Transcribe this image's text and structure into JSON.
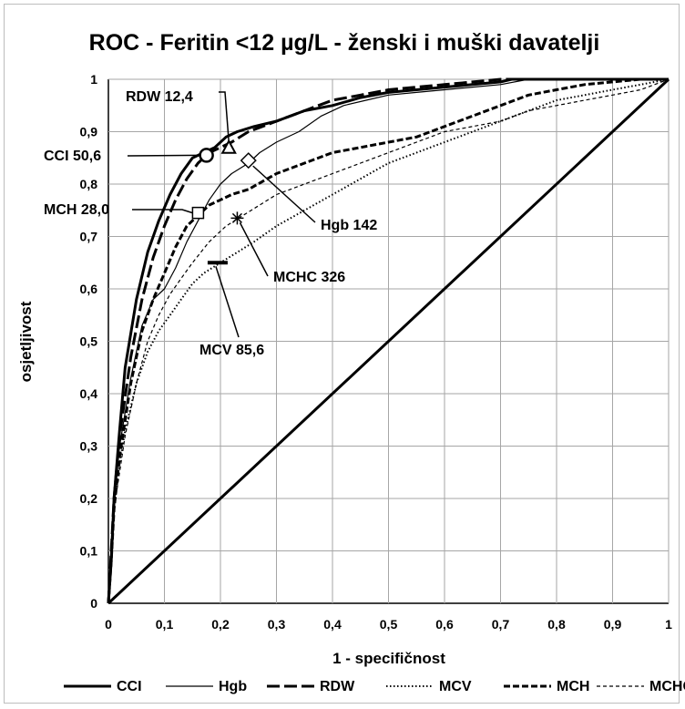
{
  "chart_data": {
    "type": "line",
    "title": "ROC - Feritin <12 µg/L - ženski i muški davatelji",
    "xlabel": "1 - specifičnost",
    "ylabel": "osjetljivost",
    "xlim": [
      0,
      1
    ],
    "ylim": [
      0,
      1
    ],
    "grid": true,
    "legend_placement": "bottom",
    "x_ticks": [
      "0",
      "0,1",
      "0,2",
      "0,3",
      "0,4",
      "0,5",
      "0,6",
      "0,7",
      "0,8",
      "0,9",
      "1"
    ],
    "y_ticks": [
      "0",
      "0,1",
      "0,2",
      "0,3",
      "0,4",
      "0,5",
      "0,6",
      "0,7",
      "0,8",
      "0,9",
      "1"
    ],
    "series": [
      {
        "name": "CCI",
        "style": "solid-thick",
        "color": "#000000",
        "x": [
          0,
          0.005,
          0.01,
          0.02,
          0.03,
          0.05,
          0.07,
          0.09,
          0.11,
          0.13,
          0.15,
          0.17,
          0.19,
          0.21,
          0.23,
          0.26,
          0.3,
          0.35,
          0.4,
          0.45,
          0.5,
          0.55,
          0.6,
          0.65,
          0.7,
          0.72,
          0.75,
          1
        ],
        "y": [
          0,
          0.08,
          0.2,
          0.33,
          0.45,
          0.58,
          0.67,
          0.73,
          0.78,
          0.82,
          0.85,
          0.86,
          0.87,
          0.89,
          0.9,
          0.91,
          0.92,
          0.94,
          0.95,
          0.965,
          0.975,
          0.98,
          0.985,
          0.99,
          0.995,
          1,
          1,
          1
        ]
      },
      {
        "name": "Hgb",
        "style": "solid-thin",
        "color": "#000000",
        "x": [
          0,
          0.01,
          0.02,
          0.04,
          0.06,
          0.08,
          0.1,
          0.12,
          0.14,
          0.16,
          0.18,
          0.2,
          0.22,
          0.25,
          0.27,
          0.3,
          0.34,
          0.38,
          0.42,
          0.46,
          0.5,
          0.55,
          0.6,
          0.65,
          0.7,
          0.75,
          1
        ],
        "y": [
          0,
          0.2,
          0.3,
          0.43,
          0.53,
          0.58,
          0.6,
          0.64,
          0.69,
          0.73,
          0.77,
          0.8,
          0.82,
          0.84,
          0.86,
          0.88,
          0.9,
          0.93,
          0.95,
          0.96,
          0.97,
          0.975,
          0.98,
          0.985,
          0.99,
          1,
          1
        ]
      },
      {
        "name": "RDW",
        "style": "long-dash-thick",
        "color": "#000000",
        "x": [
          0,
          0.005,
          0.01,
          0.02,
          0.04,
          0.06,
          0.08,
          0.1,
          0.12,
          0.14,
          0.16,
          0.18,
          0.2,
          0.22,
          0.25,
          0.3,
          0.35,
          0.4,
          0.45,
          0.5,
          0.55,
          0.6,
          0.65,
          0.7,
          0.75,
          1
        ],
        "y": [
          0,
          0.1,
          0.2,
          0.32,
          0.47,
          0.58,
          0.66,
          0.72,
          0.77,
          0.81,
          0.84,
          0.86,
          0.87,
          0.88,
          0.9,
          0.92,
          0.94,
          0.96,
          0.97,
          0.98,
          0.985,
          0.99,
          0.995,
          1,
          1,
          1
        ]
      },
      {
        "name": "MCV",
        "style": "dotted",
        "color": "#000000",
        "x": [
          0,
          0.01,
          0.03,
          0.05,
          0.07,
          0.09,
          0.11,
          0.13,
          0.15,
          0.17,
          0.2,
          0.23,
          0.26,
          0.3,
          0.35,
          0.4,
          0.45,
          0.5,
          0.55,
          0.6,
          0.65,
          0.7,
          0.75,
          0.8,
          0.85,
          0.9,
          0.95,
          1
        ],
        "y": [
          0,
          0.2,
          0.33,
          0.42,
          0.48,
          0.52,
          0.55,
          0.58,
          0.61,
          0.63,
          0.65,
          0.67,
          0.69,
          0.72,
          0.75,
          0.78,
          0.81,
          0.84,
          0.86,
          0.88,
          0.9,
          0.92,
          0.94,
          0.96,
          0.97,
          0.98,
          0.99,
          1
        ]
      },
      {
        "name": "MCH",
        "style": "dash-thick",
        "color": "#000000",
        "x": [
          0,
          0.005,
          0.01,
          0.02,
          0.04,
          0.06,
          0.08,
          0.1,
          0.12,
          0.14,
          0.16,
          0.18,
          0.2,
          0.22,
          0.25,
          0.3,
          0.35,
          0.4,
          0.45,
          0.5,
          0.55,
          0.6,
          0.65,
          0.7,
          0.75,
          0.8,
          0.85,
          0.9,
          0.95,
          1
        ],
        "y": [
          0,
          0.08,
          0.18,
          0.28,
          0.42,
          0.52,
          0.58,
          0.63,
          0.68,
          0.72,
          0.74,
          0.76,
          0.77,
          0.78,
          0.79,
          0.82,
          0.84,
          0.86,
          0.87,
          0.88,
          0.89,
          0.91,
          0.93,
          0.95,
          0.97,
          0.98,
          0.99,
          0.995,
          1,
          1
        ]
      },
      {
        "name": "MCHC",
        "style": "short-dash-thin",
        "color": "#000000",
        "x": [
          0,
          0.01,
          0.03,
          0.05,
          0.07,
          0.09,
          0.11,
          0.13,
          0.15,
          0.18,
          0.21,
          0.24,
          0.27,
          0.3,
          0.35,
          0.4,
          0.45,
          0.5,
          0.55,
          0.6,
          0.65,
          0.7,
          0.75,
          0.8,
          0.85,
          0.9,
          0.95,
          1
        ],
        "y": [
          0,
          0.18,
          0.32,
          0.42,
          0.5,
          0.55,
          0.59,
          0.62,
          0.65,
          0.69,
          0.72,
          0.74,
          0.76,
          0.78,
          0.8,
          0.82,
          0.84,
          0.86,
          0.88,
          0.9,
          0.91,
          0.92,
          0.94,
          0.95,
          0.96,
          0.97,
          0.98,
          1
        ]
      },
      {
        "name": "diagonal",
        "style": "solid-reference",
        "color": "#000000",
        "x": [
          0,
          1
        ],
        "y": [
          0,
          1
        ]
      }
    ],
    "annotations": [
      {
        "label": "RDW 12,4",
        "marker": "triangle",
        "x": 0.215,
        "y": 0.87
      },
      {
        "label": "CCI 50,6",
        "marker": "circle",
        "x": 0.175,
        "y": 0.855
      },
      {
        "label": "MCH 28,0",
        "marker": "square",
        "x": 0.16,
        "y": 0.745
      },
      {
        "label": "Hgb 142",
        "marker": "diamond",
        "x": 0.25,
        "y": 0.845
      },
      {
        "label": "MCHC 326",
        "marker": "star",
        "x": 0.23,
        "y": 0.735
      },
      {
        "label": "MCV 85,6",
        "marker": "dash",
        "x": 0.195,
        "y": 0.65
      }
    ]
  }
}
